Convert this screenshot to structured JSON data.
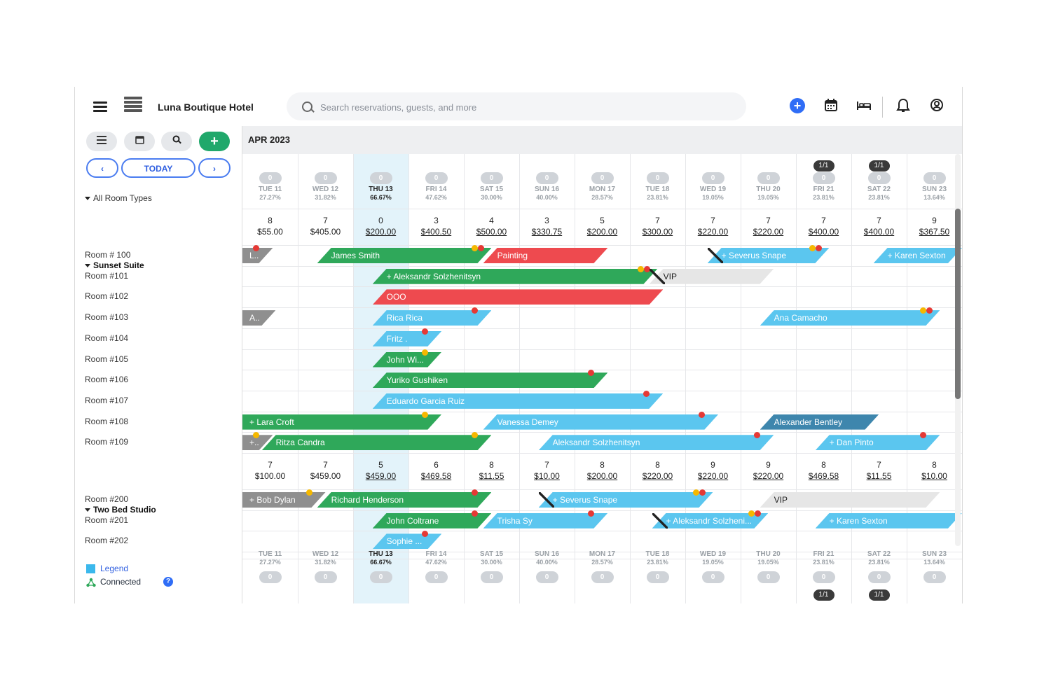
{
  "topbar": {
    "hotel_name": "Luna Boutique Hotel",
    "search_placeholder": "Search reservations, guests, and more"
  },
  "toolbar": {
    "today_label": "TODAY",
    "prev_label": "‹",
    "next_label": "›",
    "add_label": "+"
  },
  "month_label": "APR 2023",
  "room_types_label": "All Room Types",
  "days": [
    {
      "name": "TUE 11",
      "pct": "27.27%",
      "count": "0",
      "top": "",
      "bottom": ""
    },
    {
      "name": "WED 12",
      "pct": "31.82%",
      "count": "0",
      "top": "",
      "bottom": ""
    },
    {
      "name": "THU 13",
      "pct": "66.67%",
      "count": "0",
      "top": "",
      "bottom": "",
      "today": true
    },
    {
      "name": "FRI 14",
      "pct": "47.62%",
      "count": "0",
      "top": "",
      "bottom": ""
    },
    {
      "name": "SAT 15",
      "pct": "30.00%",
      "count": "0",
      "top": "",
      "bottom": ""
    },
    {
      "name": "SUN 16",
      "pct": "40.00%",
      "count": "0",
      "top": "",
      "bottom": ""
    },
    {
      "name": "MON 17",
      "pct": "28.57%",
      "count": "0",
      "top": "",
      "bottom": ""
    },
    {
      "name": "TUE 18",
      "pct": "23.81%",
      "count": "0",
      "top": "",
      "bottom": ""
    },
    {
      "name": "WED 19",
      "pct": "19.05%",
      "count": "0",
      "top": "",
      "bottom": ""
    },
    {
      "name": "THU 20",
      "pct": "19.05%",
      "count": "0",
      "top": "",
      "bottom": ""
    },
    {
      "name": "FRI 21",
      "pct": "23.81%",
      "count": "0",
      "top": "1/1",
      "bottom": "1/1"
    },
    {
      "name": "SAT 22",
      "pct": "23.81%",
      "count": "0",
      "top": "1/1",
      "bottom": "1/1"
    },
    {
      "name": "SUN 23",
      "pct": "13.64%",
      "count": "0",
      "top": "",
      "bottom": ""
    }
  ],
  "groups": [
    {
      "name": "Sunset Suite",
      "avail": [
        {
          "n": "8",
          "p": "$55.00",
          "u": false
        },
        {
          "n": "7",
          "p": "$405.00",
          "u": false
        },
        {
          "n": "0",
          "p": "$200.00",
          "u": true
        },
        {
          "n": "3",
          "p": "$400.50",
          "u": true
        },
        {
          "n": "4",
          "p": "$500.00",
          "u": true
        },
        {
          "n": "3",
          "p": "$330.75",
          "u": true
        },
        {
          "n": "5",
          "p": "$200.00",
          "u": true
        },
        {
          "n": "7",
          "p": "$300.00",
          "u": true
        },
        {
          "n": "7",
          "p": "$220.00",
          "u": true
        },
        {
          "n": "7",
          "p": "$220.00",
          "u": true
        },
        {
          "n": "7",
          "p": "$400.00",
          "u": true
        },
        {
          "n": "7",
          "p": "$400.00",
          "u": true
        },
        {
          "n": "9",
          "p": "$367.50",
          "u": true
        }
      ],
      "rooms": [
        "Room # 100",
        "Room #101",
        "Room #102",
        "Room #103",
        "Room #104",
        "Room #105",
        "Room #106",
        "Room #107",
        "Room #108",
        "Room #109"
      ]
    },
    {
      "name": "Two Bed Studio",
      "avail": [
        {
          "n": "7",
          "p": "$100.00",
          "u": false
        },
        {
          "n": "7",
          "p": "$459.00",
          "u": false
        },
        {
          "n": "5",
          "p": "$459.00",
          "u": true
        },
        {
          "n": "6",
          "p": "$469.58",
          "u": true
        },
        {
          "n": "8",
          "p": "$11.55",
          "u": true
        },
        {
          "n": "7",
          "p": "$10.00",
          "u": true
        },
        {
          "n": "8",
          "p": "$200.00",
          "u": true
        },
        {
          "n": "8",
          "p": "$220.00",
          "u": true
        },
        {
          "n": "9",
          "p": "$220.00",
          "u": true
        },
        {
          "n": "9",
          "p": "$220.00",
          "u": true
        },
        {
          "n": "8",
          "p": "$469.58",
          "u": true
        },
        {
          "n": "7",
          "p": "$11.55",
          "u": true
        },
        {
          "n": "8",
          "p": "$10.00",
          "u": true
        }
      ],
      "rooms": [
        "Room #200",
        "Room #201",
        "Room #202"
      ]
    }
  ],
  "reservations": [
    {
      "room": 0,
      "start": 0.0,
      "end": 0.55,
      "label": "L..",
      "color": "gray",
      "dots": [
        "r"
      ]
    },
    {
      "room": 0,
      "start": 1.35,
      "end": 4.5,
      "label": "James Smith",
      "color": "green",
      "dots": [
        "y",
        "r"
      ]
    },
    {
      "room": 0,
      "start": 4.35,
      "end": 6.6,
      "label": "Painting",
      "color": "red",
      "dots": []
    },
    {
      "room": 0,
      "start": 8.4,
      "end": 10.6,
      "label": "+ Severus Snape",
      "color": "blue",
      "dots": [
        "y",
        "r"
      ],
      "flag": true
    },
    {
      "room": 0,
      "start": 11.4,
      "end": 13.0,
      "label": "+ Karen Sexton",
      "color": "blue",
      "dots": []
    },
    {
      "room": 1,
      "start": 2.35,
      "end": 7.5,
      "label": "+ Aleksandr Solzhenitsyn",
      "color": "green",
      "dots": [
        "y",
        "r"
      ]
    },
    {
      "room": 1,
      "start": 7.35,
      "end": 9.6,
      "label": "VIP",
      "color": "light",
      "dots": [],
      "flag": true
    },
    {
      "room": 2,
      "start": 2.35,
      "end": 7.6,
      "label": "OOO",
      "color": "red",
      "dots": []
    },
    {
      "room": 3,
      "start": 0.0,
      "end": 0.6,
      "label": "A..",
      "color": "gray",
      "dots": []
    },
    {
      "room": 3,
      "start": 2.35,
      "end": 4.5,
      "label": "Rica Rica",
      "color": "blue",
      "dots": [
        "r"
      ]
    },
    {
      "room": 3,
      "start": 9.35,
      "end": 12.6,
      "label": "Ana Camacho",
      "color": "blue",
      "dots": [
        "y",
        "r"
      ]
    },
    {
      "room": 4,
      "start": 2.35,
      "end": 3.6,
      "label": "Fritz .",
      "color": "blue",
      "dots": [
        "r"
      ]
    },
    {
      "room": 5,
      "start": 2.35,
      "end": 3.6,
      "label": "John Wi...",
      "color": "green",
      "dots": [
        "y"
      ]
    },
    {
      "room": 6,
      "start": 2.35,
      "end": 6.6,
      "label": "Yuriko Gushiken",
      "color": "green",
      "dots": [
        "r"
      ]
    },
    {
      "room": 7,
      "start": 2.35,
      "end": 7.6,
      "label": "Eduardo Garcia Ruiz",
      "color": "blue",
      "dots": [
        "r"
      ]
    },
    {
      "room": 8,
      "start": 0.0,
      "end": 3.6,
      "label": "+ Lara Croft",
      "color": "green",
      "dots": [
        "y"
      ]
    },
    {
      "room": 8,
      "start": 4.35,
      "end": 8.6,
      "label": "Vanessa Demey",
      "color": "blue",
      "dots": [
        "r"
      ]
    },
    {
      "room": 8,
      "start": 9.35,
      "end": 11.5,
      "label": "Alexander Bentley",
      "color": "dblue",
      "dots": []
    },
    {
      "room": 8,
      "start": 13.0,
      "end": 13.0,
      "label": "",
      "color": "blue",
      "dots": []
    },
    {
      "room": 9,
      "start": 0.0,
      "end": 0.55,
      "label": "+..",
      "color": "gray",
      "dots": [
        "y"
      ]
    },
    {
      "room": 9,
      "start": 0.35,
      "end": 4.5,
      "label": "Ritza Candra",
      "color": "green",
      "dots": [
        "y"
      ]
    },
    {
      "room": 9,
      "start": 5.35,
      "end": 9.6,
      "label": "Aleksandr Solzhenitsyn",
      "color": "blue",
      "dots": [
        "r"
      ]
    },
    {
      "room": 9,
      "start": 10.35,
      "end": 12.6,
      "label": "+ Dan Pinto",
      "color": "blue",
      "dots": [
        "r"
      ]
    },
    {
      "room": 10,
      "start": 0.0,
      "end": 1.5,
      "label": "+ Bob Dylan",
      "color": "gray",
      "dots": [
        "y"
      ]
    },
    {
      "room": 10,
      "start": 1.35,
      "end": 4.5,
      "label": "Richard Henderson",
      "color": "green",
      "dots": [
        "r"
      ]
    },
    {
      "room": 10,
      "start": 5.35,
      "end": 8.5,
      "label": "+ Severus Snape",
      "color": "blue",
      "dots": [
        "y",
        "r"
      ],
      "flag": true
    },
    {
      "room": 10,
      "start": 9.35,
      "end": 12.6,
      "label": "VIP",
      "color": "light",
      "dots": []
    },
    {
      "room": 11,
      "start": 2.35,
      "end": 4.5,
      "label": "John Coltrane",
      "color": "green",
      "dots": [
        "r"
      ]
    },
    {
      "room": 11,
      "start": 4.35,
      "end": 6.6,
      "label": "Trisha Sy",
      "color": "blue",
      "dots": [
        "r"
      ]
    },
    {
      "room": 11,
      "start": 7.4,
      "end": 9.5,
      "label": "+ Aleksandr Solzheni...",
      "color": "blue",
      "dots": [
        "y",
        "r"
      ],
      "flag": true
    },
    {
      "room": 11,
      "start": 10.35,
      "end": 13.0,
      "label": "+ Karen Sexton",
      "color": "blue",
      "dots": []
    },
    {
      "room": 12,
      "start": 2.35,
      "end": 3.6,
      "label": "Sophie ...",
      "color": "blue",
      "dots": [
        "r"
      ]
    }
  ],
  "legend": {
    "legend_label": "Legend",
    "connected_label": "Connected",
    "help": "?"
  },
  "colors": {
    "accent": "#2f6df6",
    "green": "#2fa85a",
    "red": "#ee4a4f",
    "blue": "#5bc6ef",
    "today_col": "#e3f3fa"
  }
}
